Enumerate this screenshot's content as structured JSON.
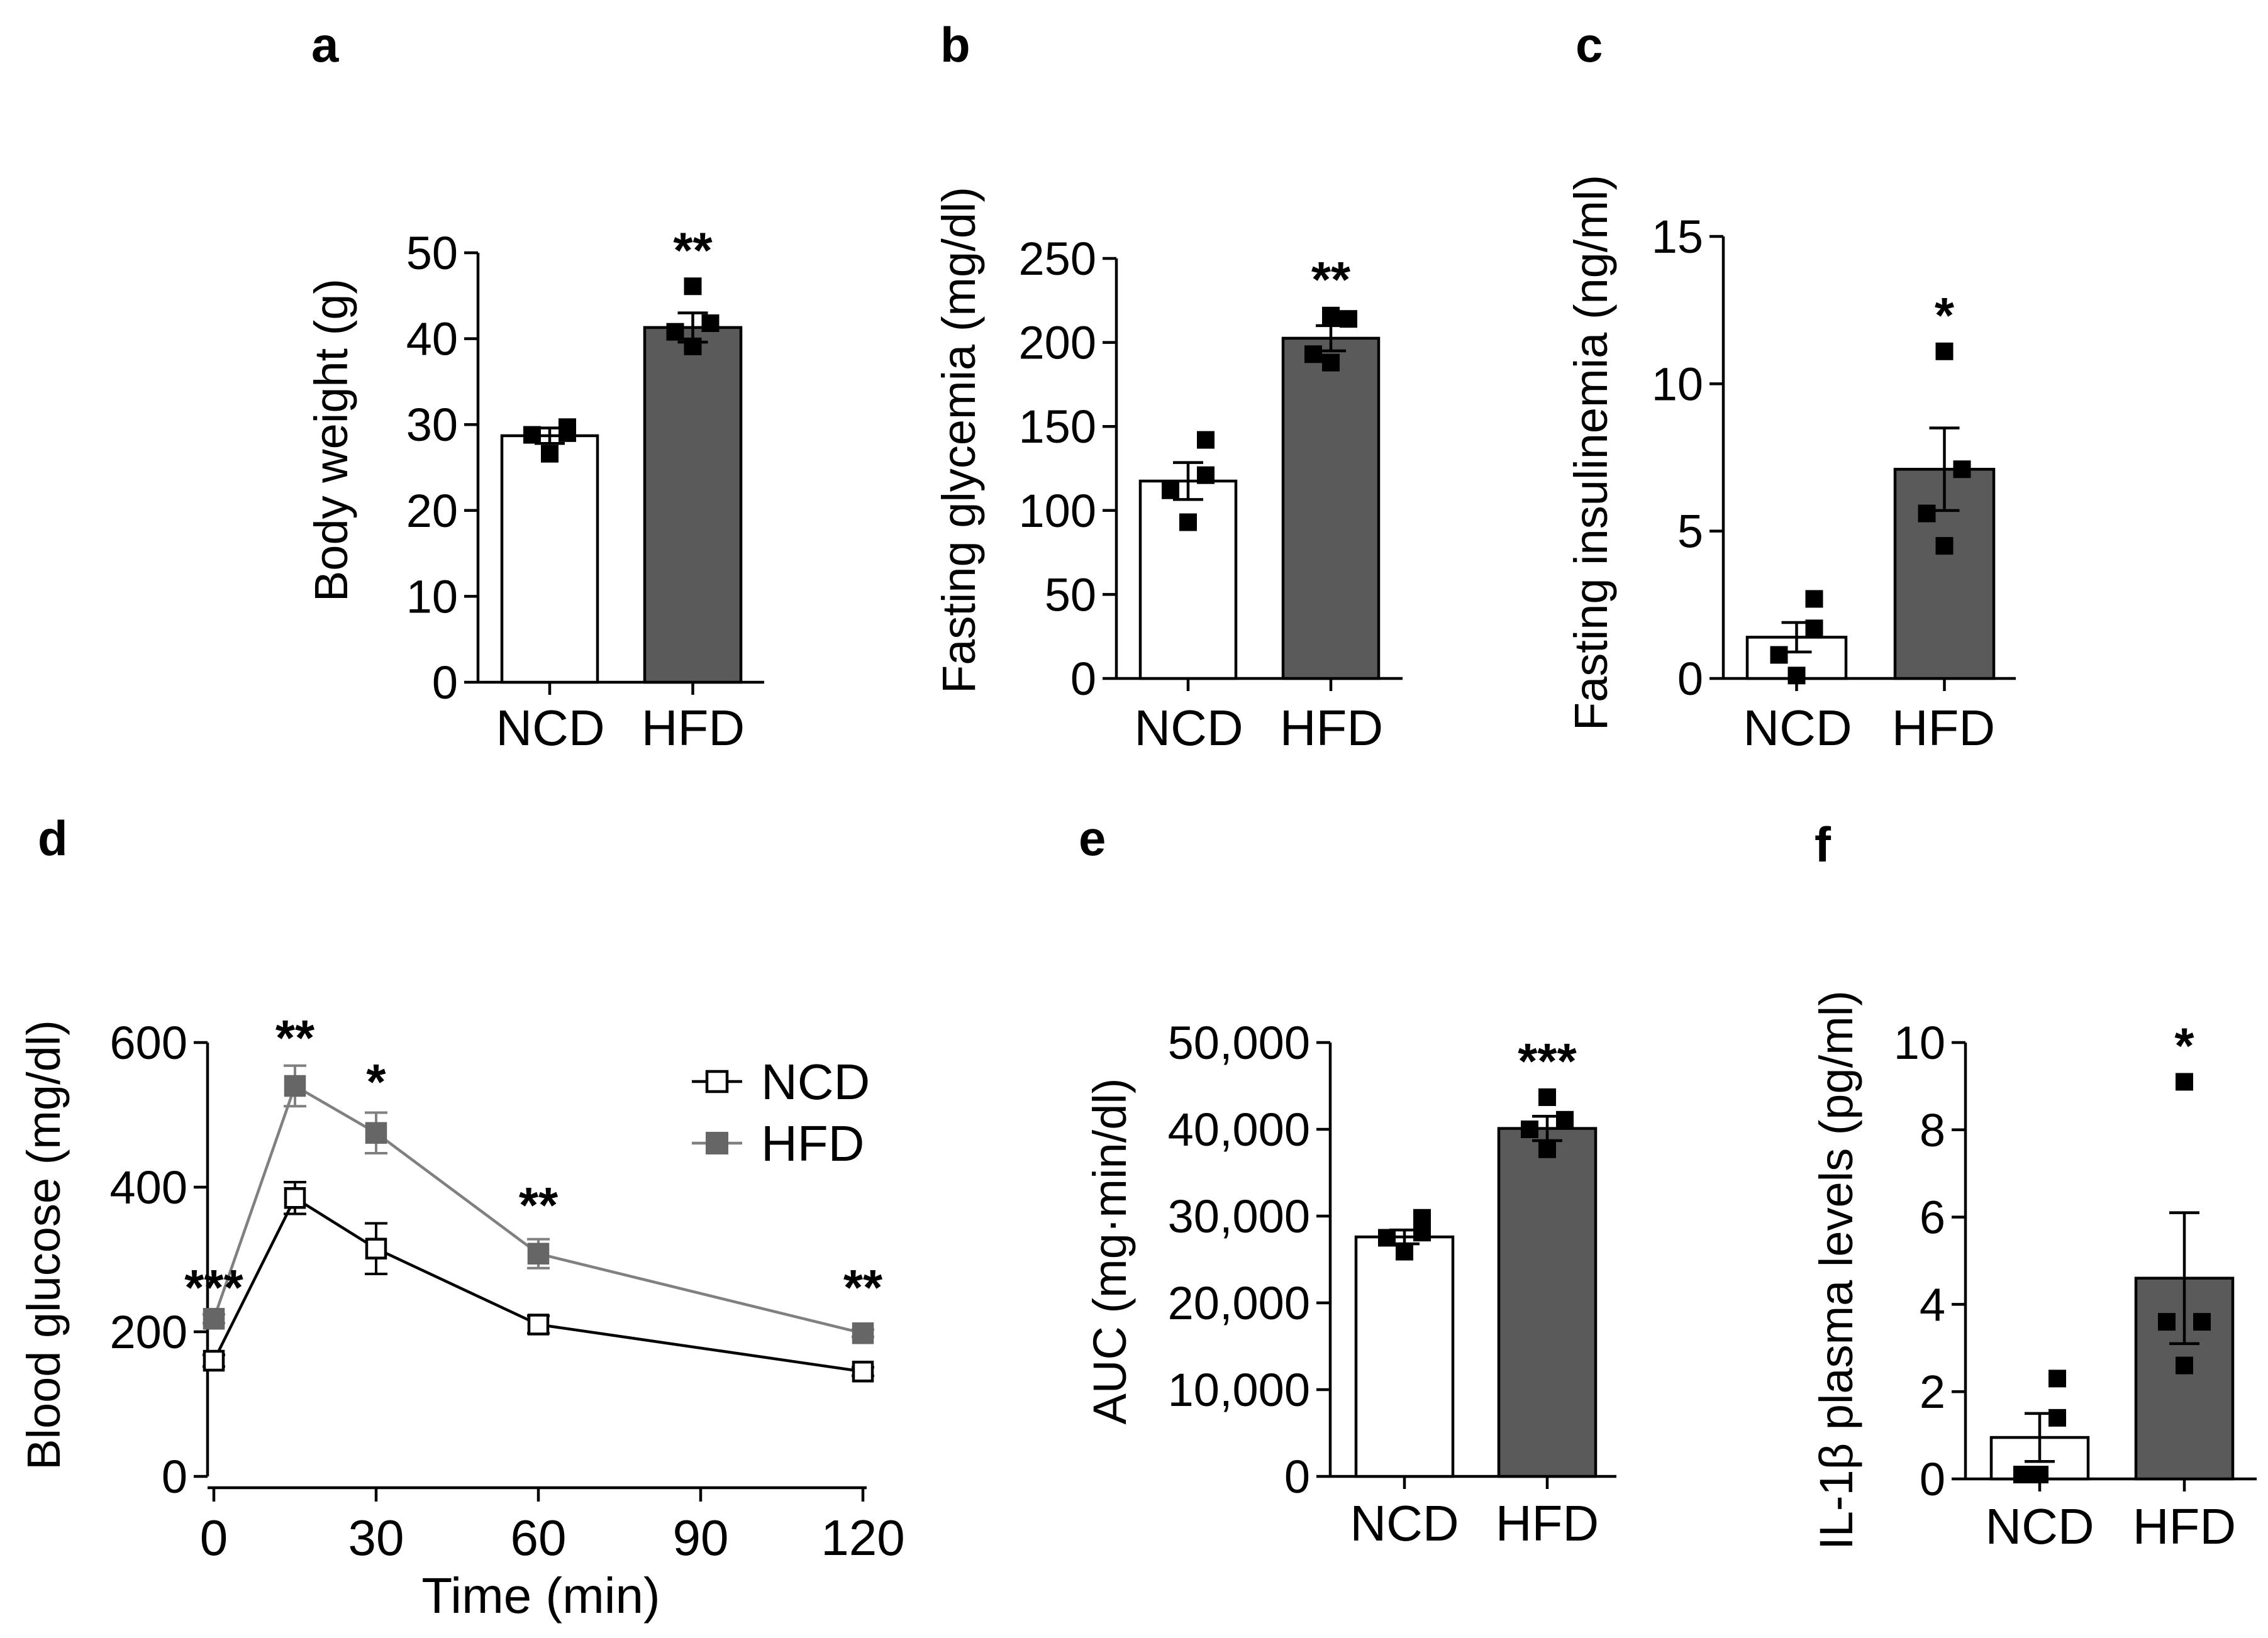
{
  "colors": {
    "ncd_fill": "#ffffff",
    "hfd_fill": "#5a5a5a",
    "hfd_line": "#808080",
    "ink": "#000000"
  },
  "chart_data": [
    {
      "panel": "a",
      "type": "bar",
      "categories": [
        "NCD",
        "HFD"
      ],
      "ylabel": "Body weight (g)",
      "ylim": [
        0,
        50
      ],
      "yticks": [
        "0",
        "10",
        "20",
        "30",
        "40",
        "50"
      ],
      "ytick_values": [
        0,
        10,
        20,
        30,
        40,
        50
      ],
      "series": [
        {
          "name": "mean",
          "values": [
            28.7,
            41.3
          ]
        }
      ],
      "sem": [
        0.9,
        1.7
      ],
      "points": [
        [
          29.7,
          29.0,
          28.8,
          26.6
        ],
        [
          46.1,
          41.8,
          40.8,
          39.1
        ]
      ],
      "significance": [
        "",
        "**"
      ]
    },
    {
      "panel": "b",
      "type": "bar",
      "categories": [
        "NCD",
        "HFD"
      ],
      "ylabel": "Fasting glycemia (mg/dl)",
      "ylim": [
        0,
        250
      ],
      "yticks": [
        "0",
        "50",
        "100",
        "150",
        "200",
        "250"
      ],
      "ytick_values": [
        0,
        50,
        100,
        150,
        200,
        250
      ],
      "series": [
        {
          "name": "mean",
          "values": [
            117.5,
            202.5
          ]
        }
      ],
      "sem": [
        11.0,
        7.5
      ],
      "points": [
        [
          142,
          121,
          112,
          93
        ],
        [
          216,
          214,
          193,
          188
        ]
      ],
      "significance": [
        "",
        "**"
      ]
    },
    {
      "panel": "c",
      "type": "bar",
      "categories": [
        "NCD",
        "HFD"
      ],
      "ylabel": "Fasting insulinemia (ng/ml)",
      "ylim": [
        0,
        15
      ],
      "yticks": [
        "0",
        "5",
        "10",
        "15"
      ],
      "ytick_values": [
        0,
        5,
        10,
        15
      ],
      "series": [
        {
          "name": "mean",
          "values": [
            1.4,
            7.1
          ]
        }
      ],
      "sem": [
        0.5,
        1.4
      ],
      "points": [
        [
          2.7,
          1.7,
          0.8,
          0.1
        ],
        [
          11.1,
          7.1,
          5.6,
          4.5
        ]
      ],
      "significance": [
        "",
        "*"
      ]
    },
    {
      "panel": "d",
      "type": "line",
      "xlabel": "Time (min)",
      "ylabel": "Blood glucose (mg/dl)",
      "xlim": [
        0,
        120
      ],
      "ylim": [
        0,
        600
      ],
      "xticks": [
        "0",
        "30",
        "60",
        "90",
        "120"
      ],
      "xtick_values": [
        0,
        30,
        60,
        90,
        120
      ],
      "yticks": [
        "0",
        "200",
        "400",
        "600"
      ],
      "ytick_values": [
        0,
        200,
        400,
        600
      ],
      "x": [
        0,
        15,
        30,
        60,
        120
      ],
      "series": [
        {
          "name": "NCD",
          "values": [
            160,
            385,
            315,
            210,
            145
          ],
          "sem": [
            8,
            22,
            35,
            12,
            6
          ]
        },
        {
          "name": "HFD",
          "values": [
            218,
            540,
            475,
            308,
            198
          ],
          "sem": [
            6,
            28,
            28,
            20,
            5
          ]
        }
      ],
      "significance": [
        "***",
        "**",
        "*",
        "**",
        "**"
      ],
      "legend": [
        "NCD",
        "HFD"
      ],
      "legend_position": "top-right"
    },
    {
      "panel": "e",
      "type": "bar",
      "categories": [
        "NCD",
        "HFD"
      ],
      "ylabel": "AUC (mg·min/dl)",
      "ylim": [
        0,
        50000
      ],
      "yticks": [
        "0",
        "10,000",
        "20,000",
        "30,000",
        "40,000",
        "50,000"
      ],
      "ytick_values": [
        0,
        10000,
        20000,
        30000,
        40000,
        50000
      ],
      "series": [
        {
          "name": "mean",
          "values": [
            27600,
            40100
          ]
        }
      ],
      "sem": [
        800,
        1400
      ],
      "points": [
        [
          29800,
          28100,
          27500,
          25900
        ],
        [
          43700,
          41100,
          40000,
          37700
        ]
      ],
      "significance": [
        "",
        "***"
      ]
    },
    {
      "panel": "f",
      "type": "bar",
      "categories": [
        "NCD",
        "HFD"
      ],
      "ylabel": "IL-1β plasma levels (pg/ml)",
      "ylim": [
        0,
        10
      ],
      "yticks": [
        "0",
        "2",
        "4",
        "6",
        "8",
        "10"
      ],
      "ytick_values": [
        0,
        2,
        4,
        6,
        8,
        10
      ],
      "series": [
        {
          "name": "mean",
          "values": [
            0.95,
            4.6
          ]
        }
      ],
      "sem": [
        0.55,
        1.5
      ],
      "points": [
        [
          2.3,
          1.4,
          0.1,
          0.1
        ],
        [
          9.1,
          3.6,
          3.6,
          2.6
        ]
      ],
      "significance": [
        "",
        "*"
      ]
    }
  ]
}
